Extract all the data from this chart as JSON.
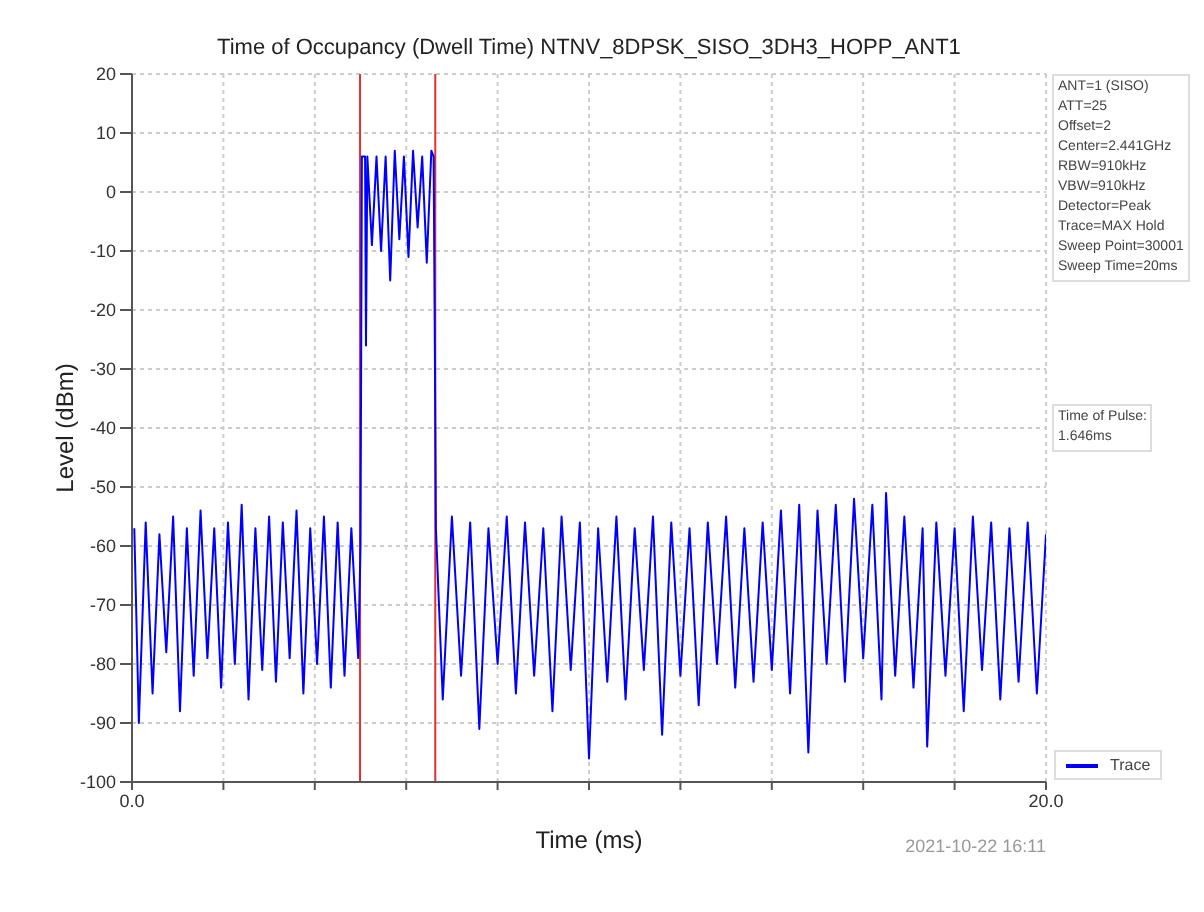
{
  "chart_data": {
    "type": "line",
    "title": "Time of Occupancy (Dwell Time) NTNV_8DPSK_SISO_3DH3_HOPP_ANT1",
    "xlabel": "Time (ms)",
    "ylabel": "Level (dBm)",
    "x": [
      0.05,
      0.15,
      0.3,
      0.45,
      0.6,
      0.75,
      0.9,
      1.05,
      1.2,
      1.35,
      1.5,
      1.65,
      1.8,
      1.95,
      2.1,
      2.25,
      2.4,
      2.55,
      2.7,
      2.85,
      3.0,
      3.15,
      3.3,
      3.45,
      3.6,
      3.75,
      3.9,
      4.05,
      4.2,
      4.35,
      4.5,
      4.65,
      4.8,
      4.95,
      5.0,
      5.03,
      5.1,
      5.12,
      5.15,
      5.25,
      5.35,
      5.45,
      5.55,
      5.65,
      5.75,
      5.85,
      5.95,
      6.05,
      6.15,
      6.25,
      6.35,
      6.45,
      6.55,
      6.6,
      6.63,
      6.65,
      6.8,
      7.0,
      7.2,
      7.4,
      7.6,
      7.8,
      8.0,
      8.2,
      8.4,
      8.6,
      8.8,
      9.0,
      9.2,
      9.4,
      9.6,
      9.8,
      10.0,
      10.2,
      10.4,
      10.6,
      10.8,
      11.0,
      11.2,
      11.4,
      11.6,
      11.8,
      12.0,
      12.2,
      12.4,
      12.6,
      12.8,
      13.0,
      13.2,
      13.4,
      13.6,
      13.8,
      14.0,
      14.2,
      14.4,
      14.6,
      14.8,
      15.0,
      15.2,
      15.4,
      15.6,
      15.8,
      16.0,
      16.2,
      16.4,
      16.5,
      16.7,
      16.9,
      17.1,
      17.3,
      17.4,
      17.6,
      17.8,
      18.0,
      18.2,
      18.4,
      18.6,
      18.8,
      19.0,
      19.2,
      19.4,
      19.6,
      19.8,
      20.0
    ],
    "series": [
      {
        "name": "Trace",
        "color": "#0000ff",
        "values": [
          -57,
          -90,
          -56,
          -85,
          -58,
          -78,
          -55,
          -88,
          -57,
          -82,
          -54,
          -79,
          -57,
          -84,
          -56,
          -80,
          -53,
          -86,
          -57,
          -81,
          -55,
          -83,
          -56,
          -79,
          -54,
          -85,
          -57,
          -80,
          -55,
          -84,
          -56,
          -82,
          -57,
          -79,
          -60,
          6,
          6,
          -26,
          6,
          -9,
          6,
          -10,
          6,
          -15,
          7,
          -8,
          6,
          -11,
          7,
          -6,
          6,
          -12,
          7,
          6,
          -30,
          -57,
          -86,
          -55,
          -82,
          -56,
          -91,
          -57,
          -80,
          -55,
          -85,
          -56,
          -82,
          -57,
          -88,
          -55,
          -81,
          -56,
          -96,
          -57,
          -83,
          -55,
          -86,
          -57,
          -81,
          -55,
          -92,
          -56,
          -82,
          -57,
          -87,
          -56,
          -80,
          -55,
          -84,
          -57,
          -83,
          -56,
          -81,
          -54,
          -85,
          -53,
          -95,
          -54,
          -80,
          -53,
          -83,
          -52,
          -79,
          -53,
          -86,
          -51,
          -82,
          -55,
          -84,
          -57,
          -94,
          -56,
          -82,
          -57,
          -88,
          -55,
          -81,
          -56,
          -86,
          -57,
          -83,
          -56,
          -85,
          -58
        ]
      }
    ],
    "xlim": [
      0,
      20
    ],
    "xticks": [
      {
        "value": 0,
        "label": "0.0"
      },
      {
        "value": 2,
        "label": null
      },
      {
        "value": 4,
        "label": null
      },
      {
        "value": 6,
        "label": null
      },
      {
        "value": 8,
        "label": null
      },
      {
        "value": 10,
        "label": null
      },
      {
        "value": 12,
        "label": null
      },
      {
        "value": 14,
        "label": null
      },
      {
        "value": 16,
        "label": null
      },
      {
        "value": 18,
        "label": null
      },
      {
        "value": 20,
        "label": "20.0"
      }
    ],
    "ylim": [
      -100,
      20
    ],
    "yticks": [
      -100,
      -90,
      -80,
      -70,
      -60,
      -50,
      -40,
      -30,
      -20,
      -10,
      0,
      10,
      20
    ],
    "ref_lines": [
      {
        "axis": "x",
        "value": 4.99,
        "color": "#e03030"
      },
      {
        "axis": "x",
        "value": 6.636,
        "color": "#e03030"
      }
    ],
    "annotations": [
      "ANT=1 (SISO)\nATT=25\nOffset=2\nCenter=2.441GHz\nRBW=910kHz\nVBW=910kHz\nDetector=Peak\nTrace=MAX Hold\nSweep Point=30001\nSweep Time=20ms",
      "Time of Pulse:\n1.646ms",
      "2021-10-22 16:11"
    ],
    "grid": true,
    "legend": "bottom right"
  }
}
